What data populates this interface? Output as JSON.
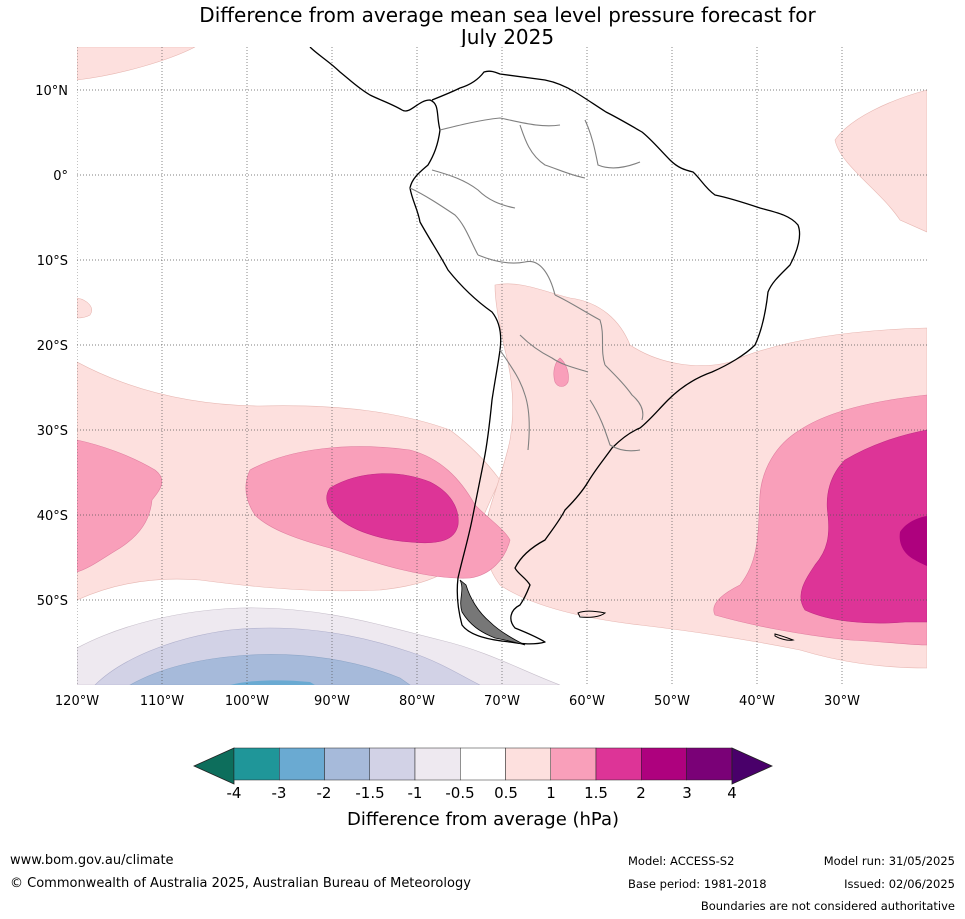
{
  "title": {
    "line1": "Difference from average mean sea level pressure forecast for",
    "line2": "July 2025"
  },
  "map": {
    "lat_labels": [
      "10°N",
      "0°",
      "10°S",
      "20°S",
      "30°S",
      "40°S",
      "50°S"
    ],
    "lon_labels": [
      "120°W",
      "110°W",
      "100°W",
      "90°W",
      "80°W",
      "70°W",
      "60°W",
      "50°W",
      "40°W",
      "30°W"
    ]
  },
  "colorbar": {
    "colors": [
      "#0d6e5c",
      "#1f9699",
      "#6aaad2",
      "#a6bada",
      "#d2d2e6",
      "#eee9f0",
      "#ffffff",
      "#fde0de",
      "#f99fba",
      "#dd3497",
      "#ae017e",
      "#7a0177",
      "#49006a"
    ],
    "tick_labels": [
      "-4",
      "-3",
      "-2",
      "-1.5",
      "-1",
      "-0.5",
      "0.5",
      "1",
      "1.5",
      "2",
      "3",
      "4"
    ],
    "label": "Difference from average (hPa)"
  },
  "footer": {
    "website": "www.bom.gov.au/climate",
    "copyright": "© Commonwealth of Australia 2025, Australian Bureau of Meteorology",
    "model": "Model: ACCESS-S2",
    "base_period": "Base period: 1981-2018",
    "model_run": "Model run: 31/05/2025",
    "issued": "Issued: 02/06/2025",
    "disclaimer": "Boundaries are not considered authoritative"
  }
}
